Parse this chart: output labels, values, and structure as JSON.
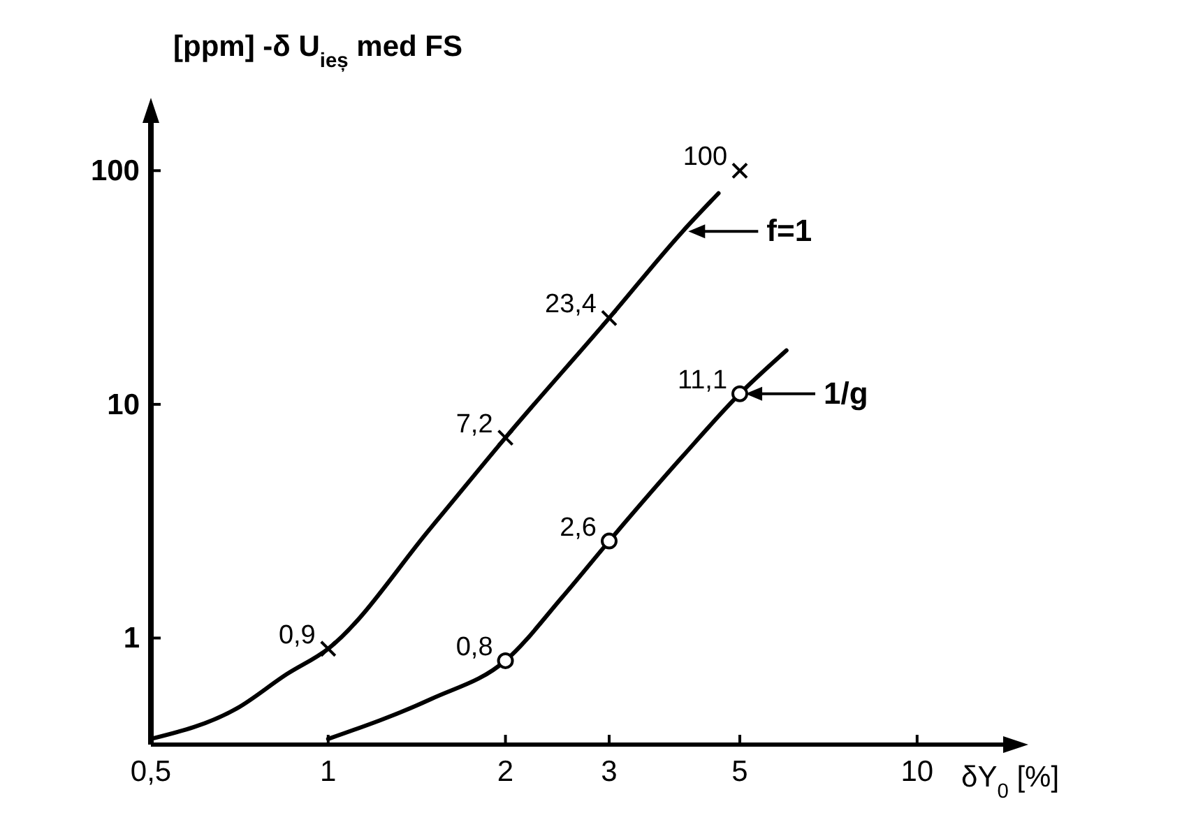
{
  "chart_data": {
    "type": "line",
    "xlabel": "δY$_{0}$ [%]",
    "ylabel": "[ppm]  -δ U$_{ieș}$ med FS",
    "log": "xy",
    "grid": false,
    "legend": "right",
    "xlim": [
      0.5,
      14
    ],
    "xticks": [
      {
        "value": 0.5,
        "label": "0,5"
      },
      1,
      2,
      3,
      5,
      10
    ],
    "ylim": [
      0.35,
      160
    ],
    "yticks": [
      1,
      10,
      100
    ],
    "series": [
      {
        "name": "f=1",
        "color": "#000000",
        "marker": "none",
        "x": [
          0.5,
          0.7,
          0.85,
          1,
          1.5,
          2,
          3,
          4,
          4.6
        ],
        "values": [
          0.37,
          0.5,
          0.7,
          0.9,
          3,
          7.2,
          23.4,
          55,
          80
        ]
      },
      {
        "name": "1/g",
        "color": "#000000",
        "marker": "none",
        "x": [
          1,
          1.5,
          2,
          2.5,
          3,
          4,
          5,
          6
        ],
        "values": [
          0.37,
          0.55,
          0.8,
          1.5,
          2.6,
          6,
          11.1,
          17
        ]
      },
      {
        "type": "scatter",
        "color": "#000000",
        "marker": "cross",
        "x": [
          1,
          2,
          3,
          5
        ],
        "values": [
          0.9,
          7.2,
          23.4,
          100
        ],
        "value_labels": [
          "0,9",
          "7,2",
          "23,4",
          "100"
        ]
      },
      {
        "type": "scatter",
        "color": "#000000",
        "marker": "circle",
        "x": [
          2,
          3,
          5
        ],
        "values": [
          0.8,
          2.6,
          11.1
        ],
        "value_labels": [
          "0,8",
          "2,6",
          "11,1"
        ]
      }
    ]
  }
}
